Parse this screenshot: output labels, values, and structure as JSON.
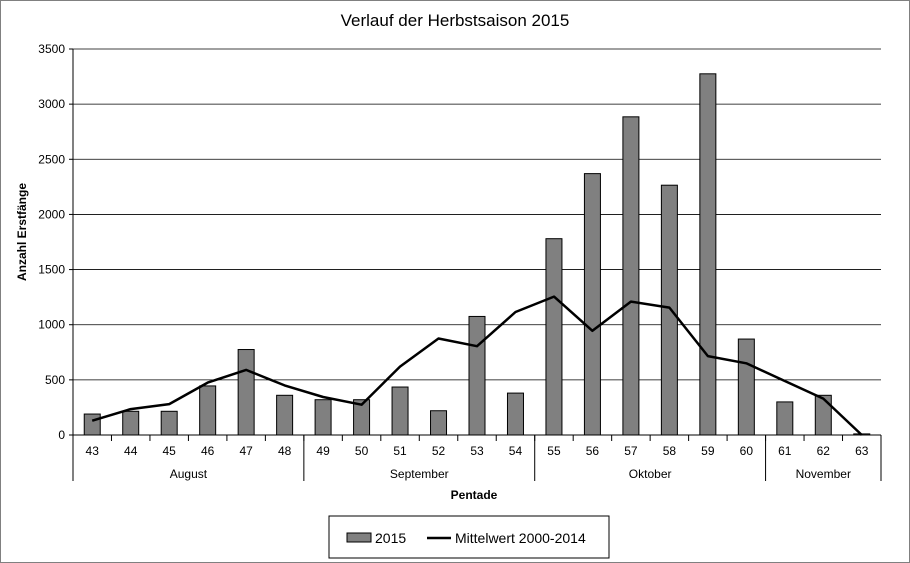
{
  "chart_data": {
    "type": "bar",
    "title": "Verlauf der Herbstsaison 2015",
    "xlabel": "Pentade",
    "ylabel": "Anzahl Erstfänge",
    "ylim": [
      0,
      3500
    ],
    "yticks": [
      0,
      500,
      1000,
      1500,
      2000,
      2500,
      3000,
      3500
    ],
    "grid": true,
    "legend_position": "bottom",
    "categories": [
      "43",
      "44",
      "45",
      "46",
      "47",
      "48",
      "49",
      "50",
      "51",
      "52",
      "53",
      "54",
      "55",
      "56",
      "57",
      "58",
      "59",
      "60",
      "61",
      "62",
      "63"
    ],
    "months": [
      {
        "name": "August",
        "from": 0,
        "to": 5
      },
      {
        "name": "September",
        "from": 6,
        "to": 11
      },
      {
        "name": "Oktober",
        "from": 12,
        "to": 17
      },
      {
        "name": "November",
        "from": 18,
        "to": 20
      }
    ],
    "series": [
      {
        "name": "2015",
        "kind": "bar",
        "color": "#808080",
        "values": [
          190,
          215,
          215,
          445,
          775,
          360,
          320,
          320,
          435,
          220,
          1075,
          380,
          1780,
          2370,
          2885,
          2265,
          3275,
          870,
          300,
          360,
          10
        ]
      },
      {
        "name": "Mittelwert 2000-2014",
        "kind": "line",
        "color": "#000000",
        "values": [
          130,
          235,
          280,
          475,
          590,
          450,
          345,
          275,
          620,
          875,
          805,
          1115,
          1255,
          945,
          1210,
          1155,
          715,
          650,
          490,
          330,
          0
        ]
      }
    ]
  }
}
